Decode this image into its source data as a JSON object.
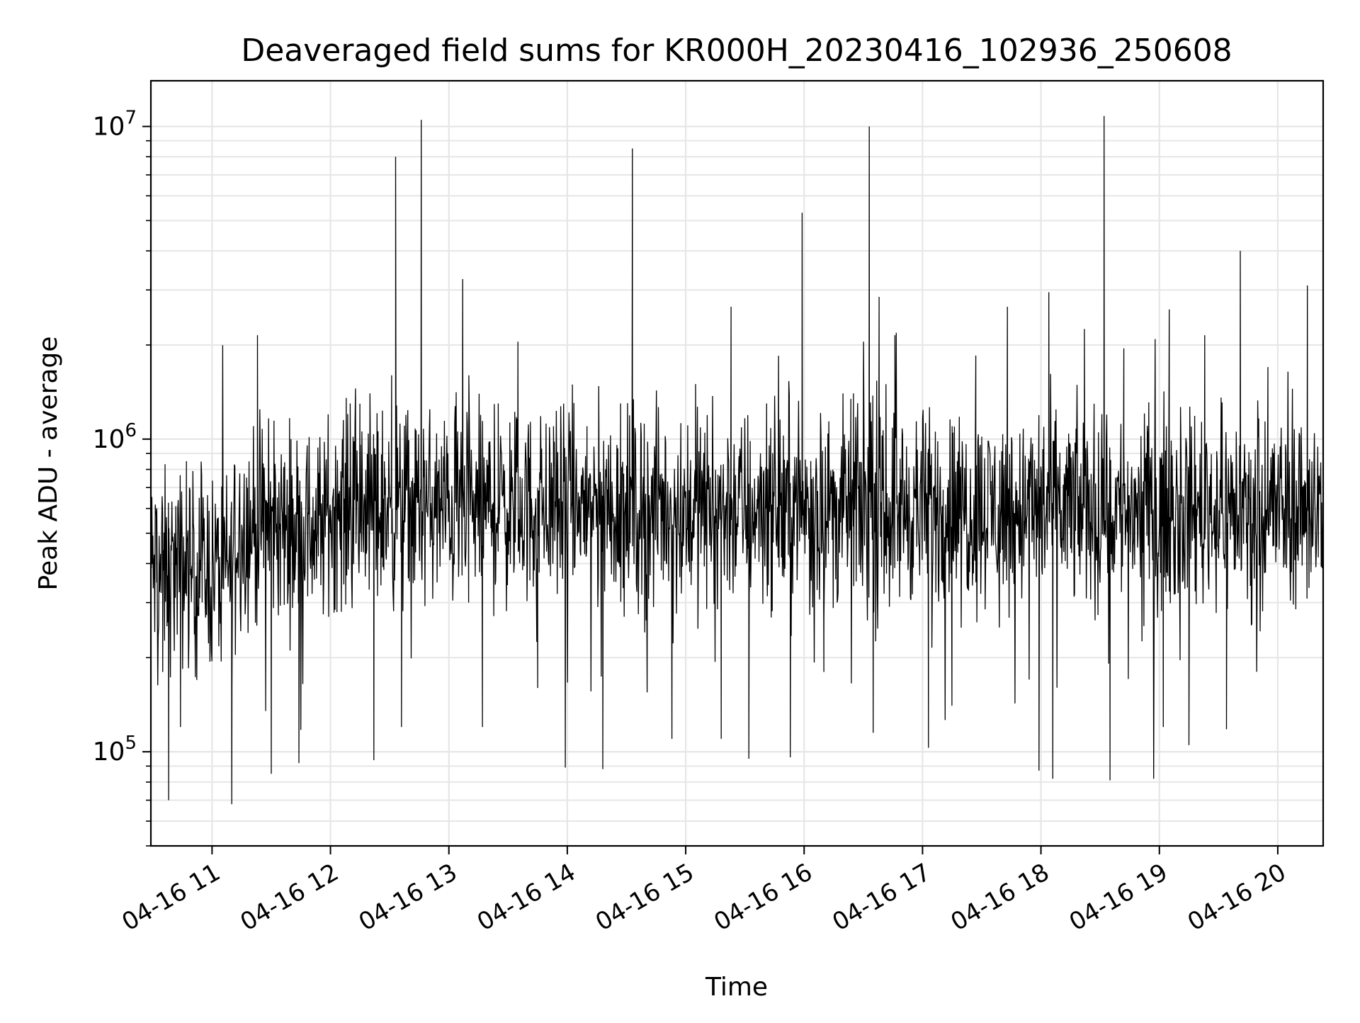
{
  "chart_data": {
    "type": "line",
    "title": "Deaveraged field sums for KR000H_20230416_102936_250608",
    "xlabel": "Time",
    "ylabel": "Peak ADU - average",
    "y_scale": "log",
    "ylim": [
      50000,
      14000000
    ],
    "xlim": [
      "2023-04-16 10:29",
      "2023-04-16 20:23"
    ],
    "x_ticks": [
      "04-16 11",
      "04-16 12",
      "04-16 13",
      "04-16 14",
      "04-16 15",
      "04-16 16",
      "04-16 17",
      "04-16 18",
      "04-16 19",
      "04-16 20"
    ],
    "y_ticks": [
      {
        "value": 100000,
        "base": "10",
        "exp": "5"
      },
      {
        "value": 1000000,
        "base": "10",
        "exp": "6"
      },
      {
        "value": 10000000,
        "base": "10",
        "exp": "7"
      }
    ],
    "grid": true,
    "line_color": "#000000",
    "series": [
      {
        "points": [
          [
            "2023-04-16 10:29",
            300000
          ],
          [
            "2023-04-16 10:32",
            600000
          ],
          [
            "2023-04-16 10:35",
            180000
          ],
          [
            "2023-04-16 10:38",
            70000
          ],
          [
            "2023-04-16 10:41",
            500000
          ],
          [
            "2023-04-16 10:44",
            120000
          ],
          [
            "2023-04-16 10:47",
            850000
          ],
          [
            "2023-04-16 10:55",
            400000
          ],
          [
            "2023-04-16 11:10",
            68000
          ],
          [
            "2023-04-16 11:18",
            700000
          ],
          [
            "2023-04-16 11:23",
            2150000
          ],
          [
            "2023-04-16 11:30",
            85000
          ],
          [
            "2023-04-16 11:40",
            1000000
          ],
          [
            "2023-04-16 11:44",
            92000
          ],
          [
            "2023-04-16 12:00",
            500000
          ],
          [
            "2023-04-16 12:10",
            1300000
          ],
          [
            "2023-04-16 12:15",
            500000
          ],
          [
            "2023-04-16 12:20",
            1400000
          ],
          [
            "2023-04-16 12:22",
            94000
          ],
          [
            "2023-04-16 12:31",
            1600000
          ],
          [
            "2023-04-16 12:33",
            8000000
          ],
          [
            "2023-04-16 12:36",
            120000
          ],
          [
            "2023-04-16 12:46",
            10500000
          ],
          [
            "2023-04-16 12:55",
            500000
          ],
          [
            "2023-04-16 13:07",
            3250000
          ],
          [
            "2023-04-16 13:10",
            300000
          ],
          [
            "2023-04-16 13:17",
            120000
          ],
          [
            "2023-04-16 13:25",
            1300000
          ],
          [
            "2023-04-16 13:35",
            2050000
          ],
          [
            "2023-04-16 13:45",
            160000
          ],
          [
            "2023-04-16 13:53",
            1100000
          ],
          [
            "2023-04-16 13:59",
            89000
          ],
          [
            "2023-04-16 14:10",
            1100000
          ],
          [
            "2023-04-16 14:18",
            88000
          ],
          [
            "2023-04-16 14:27",
            1300000
          ],
          [
            "2023-04-16 14:33",
            8500000
          ],
          [
            "2023-04-16 14:43",
            500000
          ],
          [
            "2023-04-16 14:53",
            110000
          ],
          [
            "2023-04-16 15:05",
            1500000
          ],
          [
            "2023-04-16 15:18",
            110000
          ],
          [
            "2023-04-16 15:23",
            2650000
          ],
          [
            "2023-04-16 15:32",
            95000
          ],
          [
            "2023-04-16 15:41",
            1300000
          ],
          [
            "2023-04-16 15:53",
            96000
          ],
          [
            "2023-04-16 15:59",
            5300000
          ],
          [
            "2023-04-16 16:10",
            180000
          ],
          [
            "2023-04-16 16:25",
            1400000
          ],
          [
            "2023-04-16 16:33",
            10000000
          ],
          [
            "2023-04-16 16:35",
            115000
          ],
          [
            "2023-04-16 16:38",
            2850000
          ],
          [
            "2023-04-16 16:46",
            2150000
          ],
          [
            "2023-04-16 17:03",
            103000
          ],
          [
            "2023-04-16 17:15",
            1100000
          ],
          [
            "2023-04-16 17:27",
            1850000
          ],
          [
            "2023-04-16 17:43",
            2650000
          ],
          [
            "2023-04-16 17:59",
            87000
          ],
          [
            "2023-04-16 18:04",
            2950000
          ],
          [
            "2023-04-16 18:06",
            82000
          ],
          [
            "2023-04-16 18:22",
            2250000
          ],
          [
            "2023-04-16 18:32",
            10800000
          ],
          [
            "2023-04-16 18:35",
            81000
          ],
          [
            "2023-04-16 18:42",
            1950000
          ],
          [
            "2023-04-16 19:02",
            120000
          ],
          [
            "2023-04-16 19:05",
            2600000
          ],
          [
            "2023-04-16 19:15",
            105000
          ],
          [
            "2023-04-16 19:23",
            2150000
          ],
          [
            "2023-04-16 19:34",
            118000
          ],
          [
            "2023-04-16 19:41",
            4000000
          ],
          [
            "2023-04-16 19:55",
            1700000
          ],
          [
            "2023-04-16 20:09",
            500000
          ],
          [
            "2023-04-16 20:15",
            3100000
          ],
          [
            "2023-04-16 20:23",
            600000
          ]
        ]
      }
    ]
  }
}
